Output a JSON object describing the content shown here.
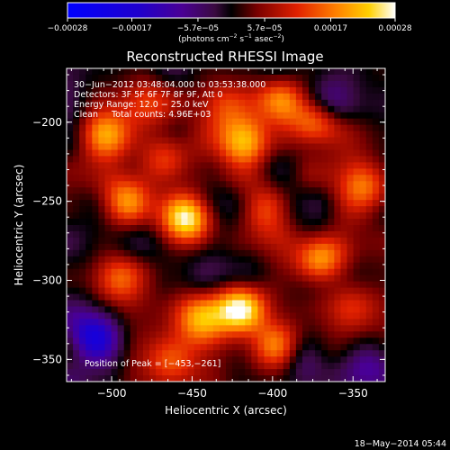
{
  "chart_data": {
    "type": "heatmap",
    "title": "Reconstructed RHESSI Image",
    "xlabel": "Heliocentric X (arcsec)",
    "ylabel": "Heliocentric Y (arcsec)",
    "xlim": [
      -528,
      -330
    ],
    "ylim": [
      -364,
      -166
    ],
    "x_ticks": [
      -500,
      -450,
      -400,
      -350
    ],
    "y_ticks": [
      -200,
      -250,
      -300,
      -350
    ],
    "x_tick_labels": [
      "−500",
      "−450",
      "−400",
      "−350"
    ],
    "y_tick_labels": [
      "−200",
      "−250",
      "−300",
      "−350"
    ],
    "colorbar": {
      "range": [
        -0.00028,
        0.00028
      ],
      "ticks": [
        -0.00028,
        -0.00017,
        -5.7e-05,
        5.7e-05,
        0.00017,
        0.00028
      ],
      "tick_labels": [
        "−0.00028",
        "−0.00017",
        "−5.7e−05",
        "5.7e−05",
        "0.00017",
        "0.00028"
      ],
      "units_text": "(photons cm",
      "units_exp1": "−2",
      "units_mid": " s",
      "units_exp2": "−1",
      "units_end": " asec",
      "units_exp3": "−2",
      "units_close": ")"
    },
    "annotations": {
      "time_range": "30−Jun−2012 03:48:04.000 to 03:53:38.000",
      "detectors": "Detectors: 3F 5F 6F 7F 8F 9F, Att 0",
      "energy": "Energy Range: 12.0 − 25.0 keV",
      "clean": "Clean     Total counts: 4.96E+03",
      "peak": "Position of Peak = [−453,−261]"
    },
    "peak_position": [
      -453,
      -261
    ],
    "sources": [
      {
        "x": -453,
        "y": -261,
        "value": 0.00028
      },
      {
        "x": -420,
        "y": -318,
        "value": 0.00024
      },
      {
        "x": -371,
        "y": -285,
        "value": 0.00022
      },
      {
        "x": -444,
        "y": -324,
        "value": 0.0002
      },
      {
        "x": -491,
        "y": -250,
        "value": 0.00019
      },
      {
        "x": -373,
        "y": -201,
        "value": 0.00019
      },
      {
        "x": -404,
        "y": -255,
        "value": 0.00017
      },
      {
        "x": -503,
        "y": -208,
        "value": 0.00017
      },
      {
        "x": -418,
        "y": -213,
        "value": 0.00016
      },
      {
        "x": -395,
        "y": -186,
        "value": 0.00015
      },
      {
        "x": -466,
        "y": -225,
        "value": 0.00014
      },
      {
        "x": -342,
        "y": -241,
        "value": 0.00014
      },
      {
        "x": -497,
        "y": -299,
        "value": 0.00015
      },
      {
        "x": -396,
        "y": -342,
        "value": 0.00016
      },
      {
        "x": -463,
        "y": -350,
        "value": 0.00012
      },
      {
        "x": -351,
        "y": -318,
        "value": 0.0001
      },
      {
        "x": -479,
        "y": -188,
        "value": 0.00011
      },
      {
        "x": -430,
        "y": -190,
        "value": 0.0001
      },
      {
        "x": -512,
        "y": -335,
        "value": -0.00017
      },
      {
        "x": -383,
        "y": -346,
        "value": -0.00012
      },
      {
        "x": -340,
        "y": -350,
        "value": -0.0001
      },
      {
        "x": -362,
        "y": -188,
        "value": -0.0001
      }
    ]
  },
  "footer": {
    "date": "18−May−2014 05:44"
  }
}
